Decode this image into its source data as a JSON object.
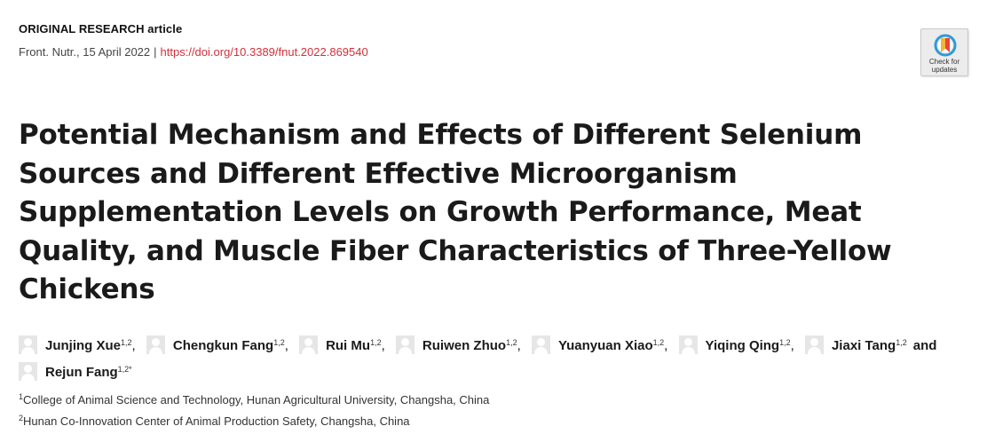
{
  "article": {
    "type_label": "ORIGINAL RESEARCH article",
    "journal_date": "Front. Nutr., 15 April 2022",
    "separator": "|",
    "doi": "https://doi.org/10.3389/fnut.2022.869540"
  },
  "check_updates": {
    "line1": "Check for",
    "line2": "updates",
    "colors": {
      "ribbon_red": "#e8453c",
      "ribbon_gold": "#f2b632",
      "ring_blue": "#2d9bd8"
    }
  },
  "title": "Potential Mechanism and Effects of Different Selenium Sources and Different Effective Microorganism Supplementation Levels on Growth Performance, Meat Quality, and Muscle Fiber Characteristics of Three-Yellow Chickens",
  "authors": [
    {
      "name": "Junjing Xue",
      "sup": "1,2",
      "sep": ","
    },
    {
      "name": "Chengkun Fang",
      "sup": "1,2",
      "sep": ","
    },
    {
      "name": "Rui Mu",
      "sup": "1,2",
      "sep": ","
    },
    {
      "name": "Ruiwen Zhuo",
      "sup": "1,2",
      "sep": ","
    },
    {
      "name": "Yuanyuan Xiao",
      "sup": "1,2",
      "sep": ","
    },
    {
      "name": "Yiqing Qing",
      "sup": "1,2",
      "sep": ","
    },
    {
      "name": "Jiaxi Tang",
      "sup": "1,2",
      "sep": ""
    },
    {
      "name": "Rejun Fang",
      "sup": "1,2*",
      "sep": ""
    }
  ],
  "authors_conjunction": "and",
  "affiliations": [
    {
      "sup": "1",
      "text": "College of Animal Science and Technology, Hunan Agricultural University, Changsha, China"
    },
    {
      "sup": "2",
      "text": "Hunan Co-Innovation Center of Animal Production Safety, Changsha, China"
    }
  ],
  "colors": {
    "link": "#d2313b",
    "text": "#1a1a1a",
    "avatar_bg": "#e6e6e6"
  }
}
